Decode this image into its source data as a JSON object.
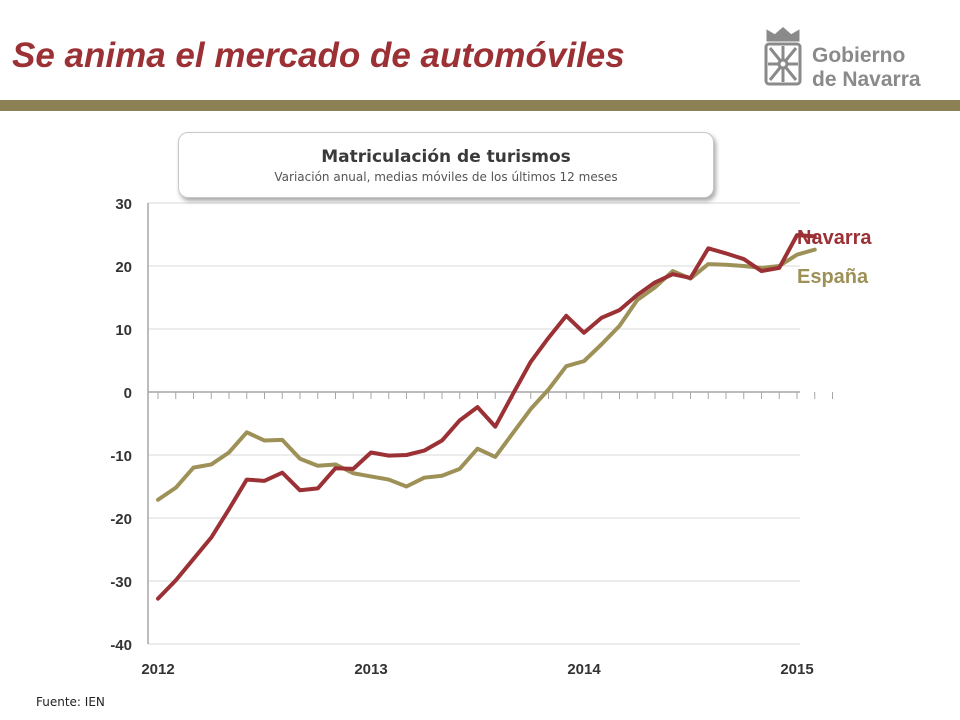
{
  "header": {
    "title": "Se anima el mercado de automóviles",
    "logo_line1": "Gobierno",
    "logo_line2": "de Navarra",
    "logo_icon": "navarra-coat-of-arms-icon"
  },
  "colors": {
    "title": "#9b3035",
    "rule": "#8c8154",
    "navarra": "#9b3035",
    "espana": "#9e9157",
    "grid": "#d9d9d9",
    "axis": "#a6a6a6"
  },
  "chart_data": {
    "type": "line",
    "title": "Matriculación de turismos",
    "subtitle": "Variación anual, medias móviles de los últimos 12 meses",
    "ylim": [
      -40,
      30
    ],
    "yticks": [
      30,
      20,
      10,
      0,
      -10,
      -20,
      -30,
      -40
    ],
    "x_ticks": [
      "2012",
      "2013",
      "2014",
      "2015"
    ],
    "x_tick_indices": [
      0,
      12,
      24,
      36
    ],
    "x_range": [
      0,
      38
    ],
    "grid": true,
    "series": [
      {
        "name": "Navarra",
        "values": [
          -32.8,
          -29.9,
          -26.5,
          -23.1,
          -18.6,
          -13.9,
          -14.1,
          -12.8,
          -15.6,
          -15.3,
          -12.1,
          -12.2,
          -9.6,
          -10.1,
          -10.0,
          -9.3,
          -7.7,
          -4.5,
          -2.4,
          -5.5,
          -0.3,
          4.8,
          8.6,
          12.1,
          9.4,
          11.8,
          13.0,
          15.4,
          17.4,
          18.7,
          18.1,
          22.8,
          22.0,
          21.1,
          19.2,
          19.7,
          24.9,
          24.7
        ]
      },
      {
        "name": "España",
        "values": [
          -17.1,
          -15.2,
          -12.0,
          -11.5,
          -9.6,
          -6.4,
          -7.7,
          -7.6,
          -10.6,
          -11.7,
          -11.5,
          -12.9,
          -13.4,
          -13.9,
          -15.0,
          -13.6,
          -13.3,
          -12.2,
          -9.0,
          -10.3,
          -6.5,
          -2.7,
          0.4,
          4.1,
          4.9,
          7.6,
          10.5,
          14.6,
          16.6,
          19.2,
          18.0,
          20.3,
          20.2,
          20.0,
          19.7,
          20.0,
          21.8,
          22.6
        ]
      }
    ],
    "legend": "right, at line ends"
  },
  "source": "Fuente: IEN"
}
